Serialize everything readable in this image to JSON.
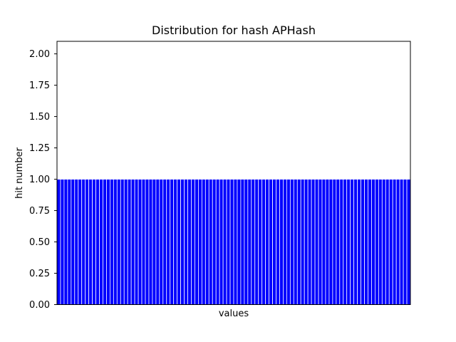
{
  "chart_data": {
    "type": "bar",
    "title": "Distribution for hash APHash",
    "xlabel": "values",
    "ylabel": "hit number",
    "ylim": [
      0,
      2.1
    ],
    "yticks": [
      0.0,
      0.25,
      0.5,
      0.75,
      1.0,
      1.25,
      1.5,
      1.75,
      2.0
    ],
    "ytick_labels": [
      "0.00",
      "0.25",
      "0.50",
      "0.75",
      "1.00",
      "1.25",
      "1.50",
      "1.75",
      "2.00"
    ],
    "bar_count": 100,
    "bar_value": 1,
    "bar_color": "#0000ff",
    "bar_edge_color": "#ffffff",
    "grid": false,
    "legend": false,
    "xticks_shown": false
  }
}
